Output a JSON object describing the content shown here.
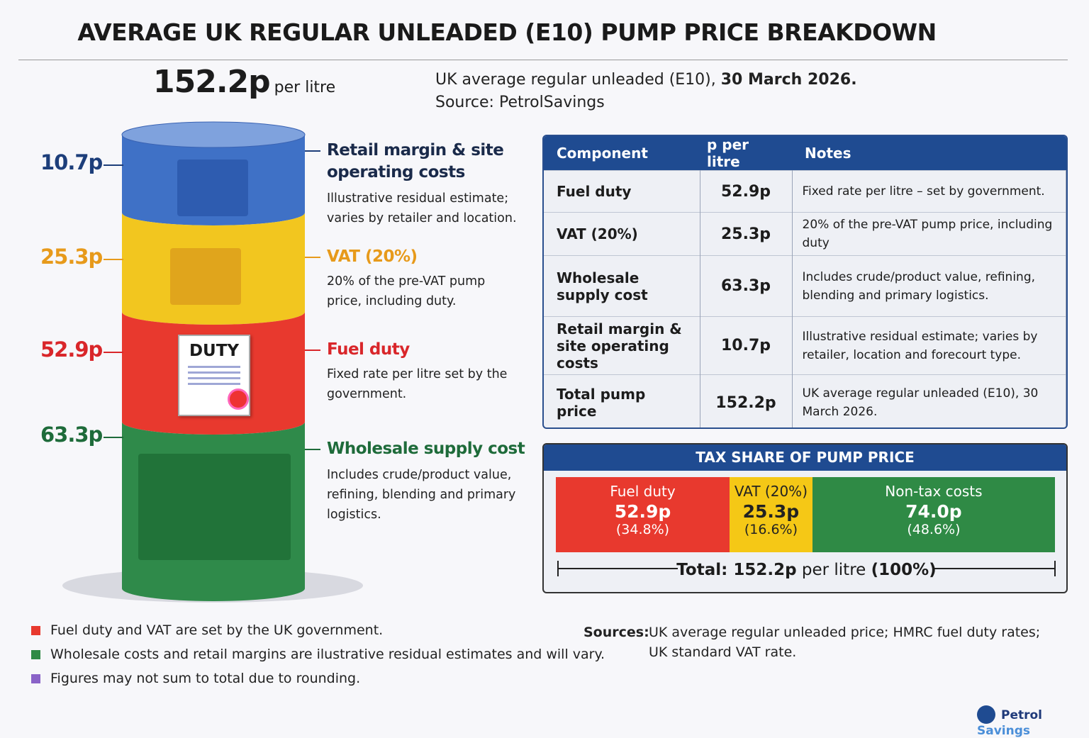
{
  "title": "AVERAGE UK REGULAR UNLEADED (E10) PUMP PRICE BREAKDOWN",
  "headline": {
    "price": "152.2p",
    "unit": "per litre"
  },
  "subtitle": {
    "line1_prefix": "UK average regular unleaded (E10),",
    "line1_date": "30 March 2026.",
    "line2": "Source: PetrolSavings"
  },
  "chart_data": {
    "type": "bar",
    "stacked": true,
    "title": "",
    "unit": "p per litre",
    "categories": [
      "Retail margin & site operating costs",
      "VAT (20%)",
      "Fuel duty",
      "Wholesale supply cost"
    ],
    "values": [
      10.7,
      25.3,
      52.9,
      63.3
    ],
    "value_labels": [
      "10.7p",
      "25.3p",
      "52.9p",
      "63.3p"
    ],
    "colors": [
      "#3f71c6",
      "#f2c61f",
      "#e8392e",
      "#2f8a4a"
    ],
    "label_colors": [
      "#1d3e7a",
      "#e79a1b",
      "#d9262a",
      "#1e6b3a"
    ],
    "icons": [
      "shop-icon",
      "cash-register-coins-icon",
      "duty-document-icon",
      "oil-refinery-icon"
    ],
    "seal_text": "DUTY"
  },
  "side": [
    {
      "title": "Retail margin & site operating costs",
      "text": "Illustrative residual estimate; varies by retailer and location."
    },
    {
      "title": "VAT (20%)",
      "text": "20% of the pre-VAT pump price, including duty."
    },
    {
      "title": "Fuel duty",
      "text": "Fixed rate per litre set by the government."
    },
    {
      "title": "Wholesale supply cost",
      "text": "Includes crude/product value, refining, blending and primary logistics."
    }
  ],
  "table": {
    "headers": [
      "Component",
      "p per litre",
      "Notes"
    ],
    "rows": [
      [
        "Fuel duty",
        "52.9p",
        "Fixed rate per litre – set by government."
      ],
      [
        "VAT (20%)",
        "25.3p",
        "20% of the pre-VAT pump price, including duty"
      ],
      [
        "Wholesale supply cost",
        "63.3p",
        "Includes crude/product value, refining, blending and primary logistics."
      ],
      [
        "Retail margin & site operating costs",
        "10.7p",
        "Illustrative residual estimate; varies by retailer, location and forecourt type."
      ],
      [
        "Total pump price",
        "152.2p",
        "UK average regular unleaded (E10), 30 March 2026."
      ]
    ]
  },
  "tax_share": {
    "title": "TAX SHARE OF PUMP PRICE",
    "segments": [
      {
        "label": "Fuel duty",
        "value": "52.9p",
        "pct": "(34.8%)",
        "share": 34.8,
        "color": "#e8392e"
      },
      {
        "label": "VAT (20%)",
        "value": "25.3p",
        "pct": "(16.6%)",
        "share": 16.6,
        "color": "#f5c816"
      },
      {
        "label": "Non-tax costs",
        "value": "74.0p",
        "pct": "(48.6%)",
        "share": 48.6,
        "color": "#2f8a45"
      }
    ],
    "total_prefix": "Total: 152.2p",
    "total_unit": "per litre",
    "total_pct": "(100%)"
  },
  "notes": [
    {
      "text": "Fuel duty and VAT are set by the UK government.",
      "color": "#e8392e"
    },
    {
      "text": "Wholesale costs and retail margins are ilustrative residual estimates and will vary.",
      "color": "#2f8a45"
    },
    {
      "text": "Figures may not sum to total due to rounding.",
      "color": "#8a63c8"
    }
  ],
  "sources": {
    "label": "Sources:",
    "line1": "UK average regular unleaded price; HMRC fuel duty rates;",
    "line2": "UK standard VAT rate."
  },
  "brand": {
    "part1": "Petrol",
    "part2": "Savings"
  }
}
